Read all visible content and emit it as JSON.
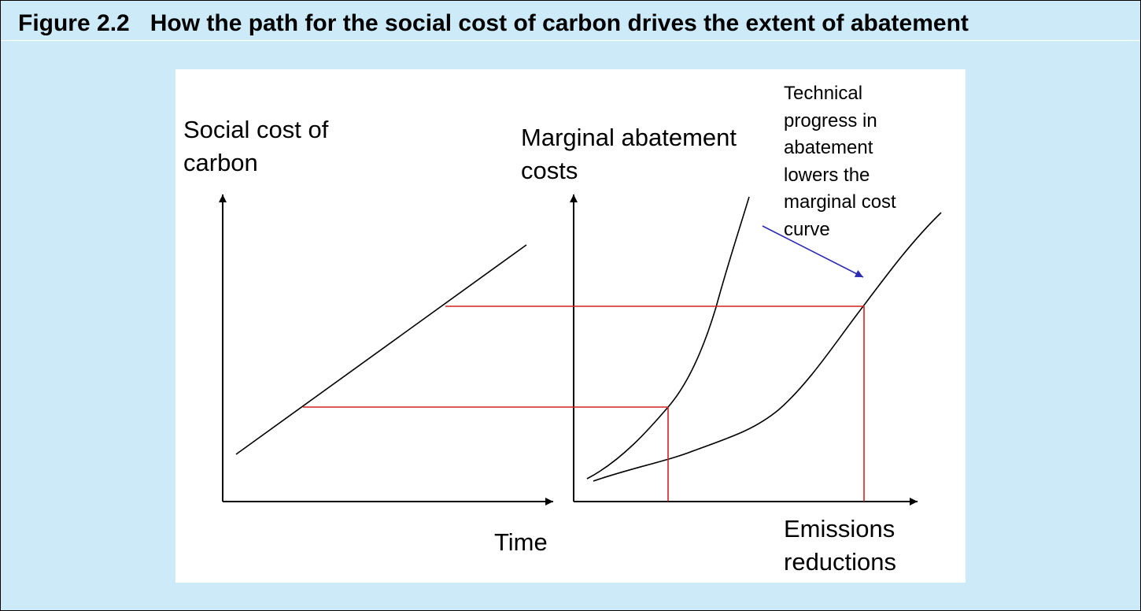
{
  "figure": {
    "number": "Figure 2.2",
    "title": "How the path for the social cost of carbon drives the extent of abatement"
  },
  "left_chart": {
    "y_axis_label_line1": "Social cost of",
    "y_axis_label_line2": "carbon",
    "x_axis_label": "Time"
  },
  "right_chart": {
    "y_axis_label_line1": "Marginal abatement",
    "y_axis_label_line2": "costs",
    "x_axis_label_line1": "Emissions",
    "x_axis_label_line2": "reductions"
  },
  "annotation": {
    "lines": [
      "Technical",
      "progress in",
      "abatement",
      "lowers the",
      "marginal cost",
      "curve"
    ]
  },
  "colors": {
    "background": "#cdeaf9",
    "panel": "#ffffff",
    "curve": "#000000",
    "projection": "#d62020",
    "arrow": "#2b2bb8"
  }
}
